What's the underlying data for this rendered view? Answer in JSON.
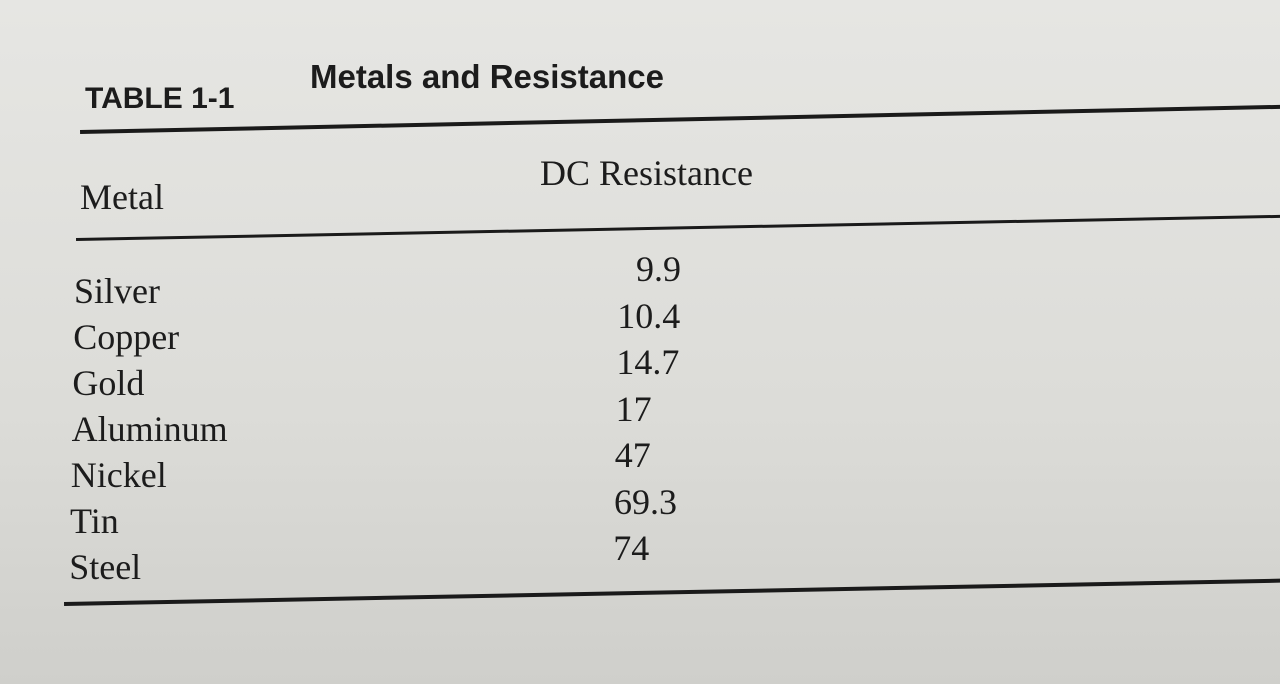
{
  "table": {
    "label": "TABLE 1-1",
    "title": "Metals and Resistance",
    "headers": [
      "Metal",
      "DC Resistance"
    ],
    "rows": [
      [
        "Silver",
        "9.9"
      ],
      [
        "Copper",
        "10.4"
      ],
      [
        "Gold",
        "14.7"
      ],
      [
        "Aluminum",
        "17"
      ],
      [
        "Nickel",
        "47"
      ],
      [
        "Tin",
        "69.3"
      ],
      [
        "Steel",
        "74"
      ]
    ]
  }
}
